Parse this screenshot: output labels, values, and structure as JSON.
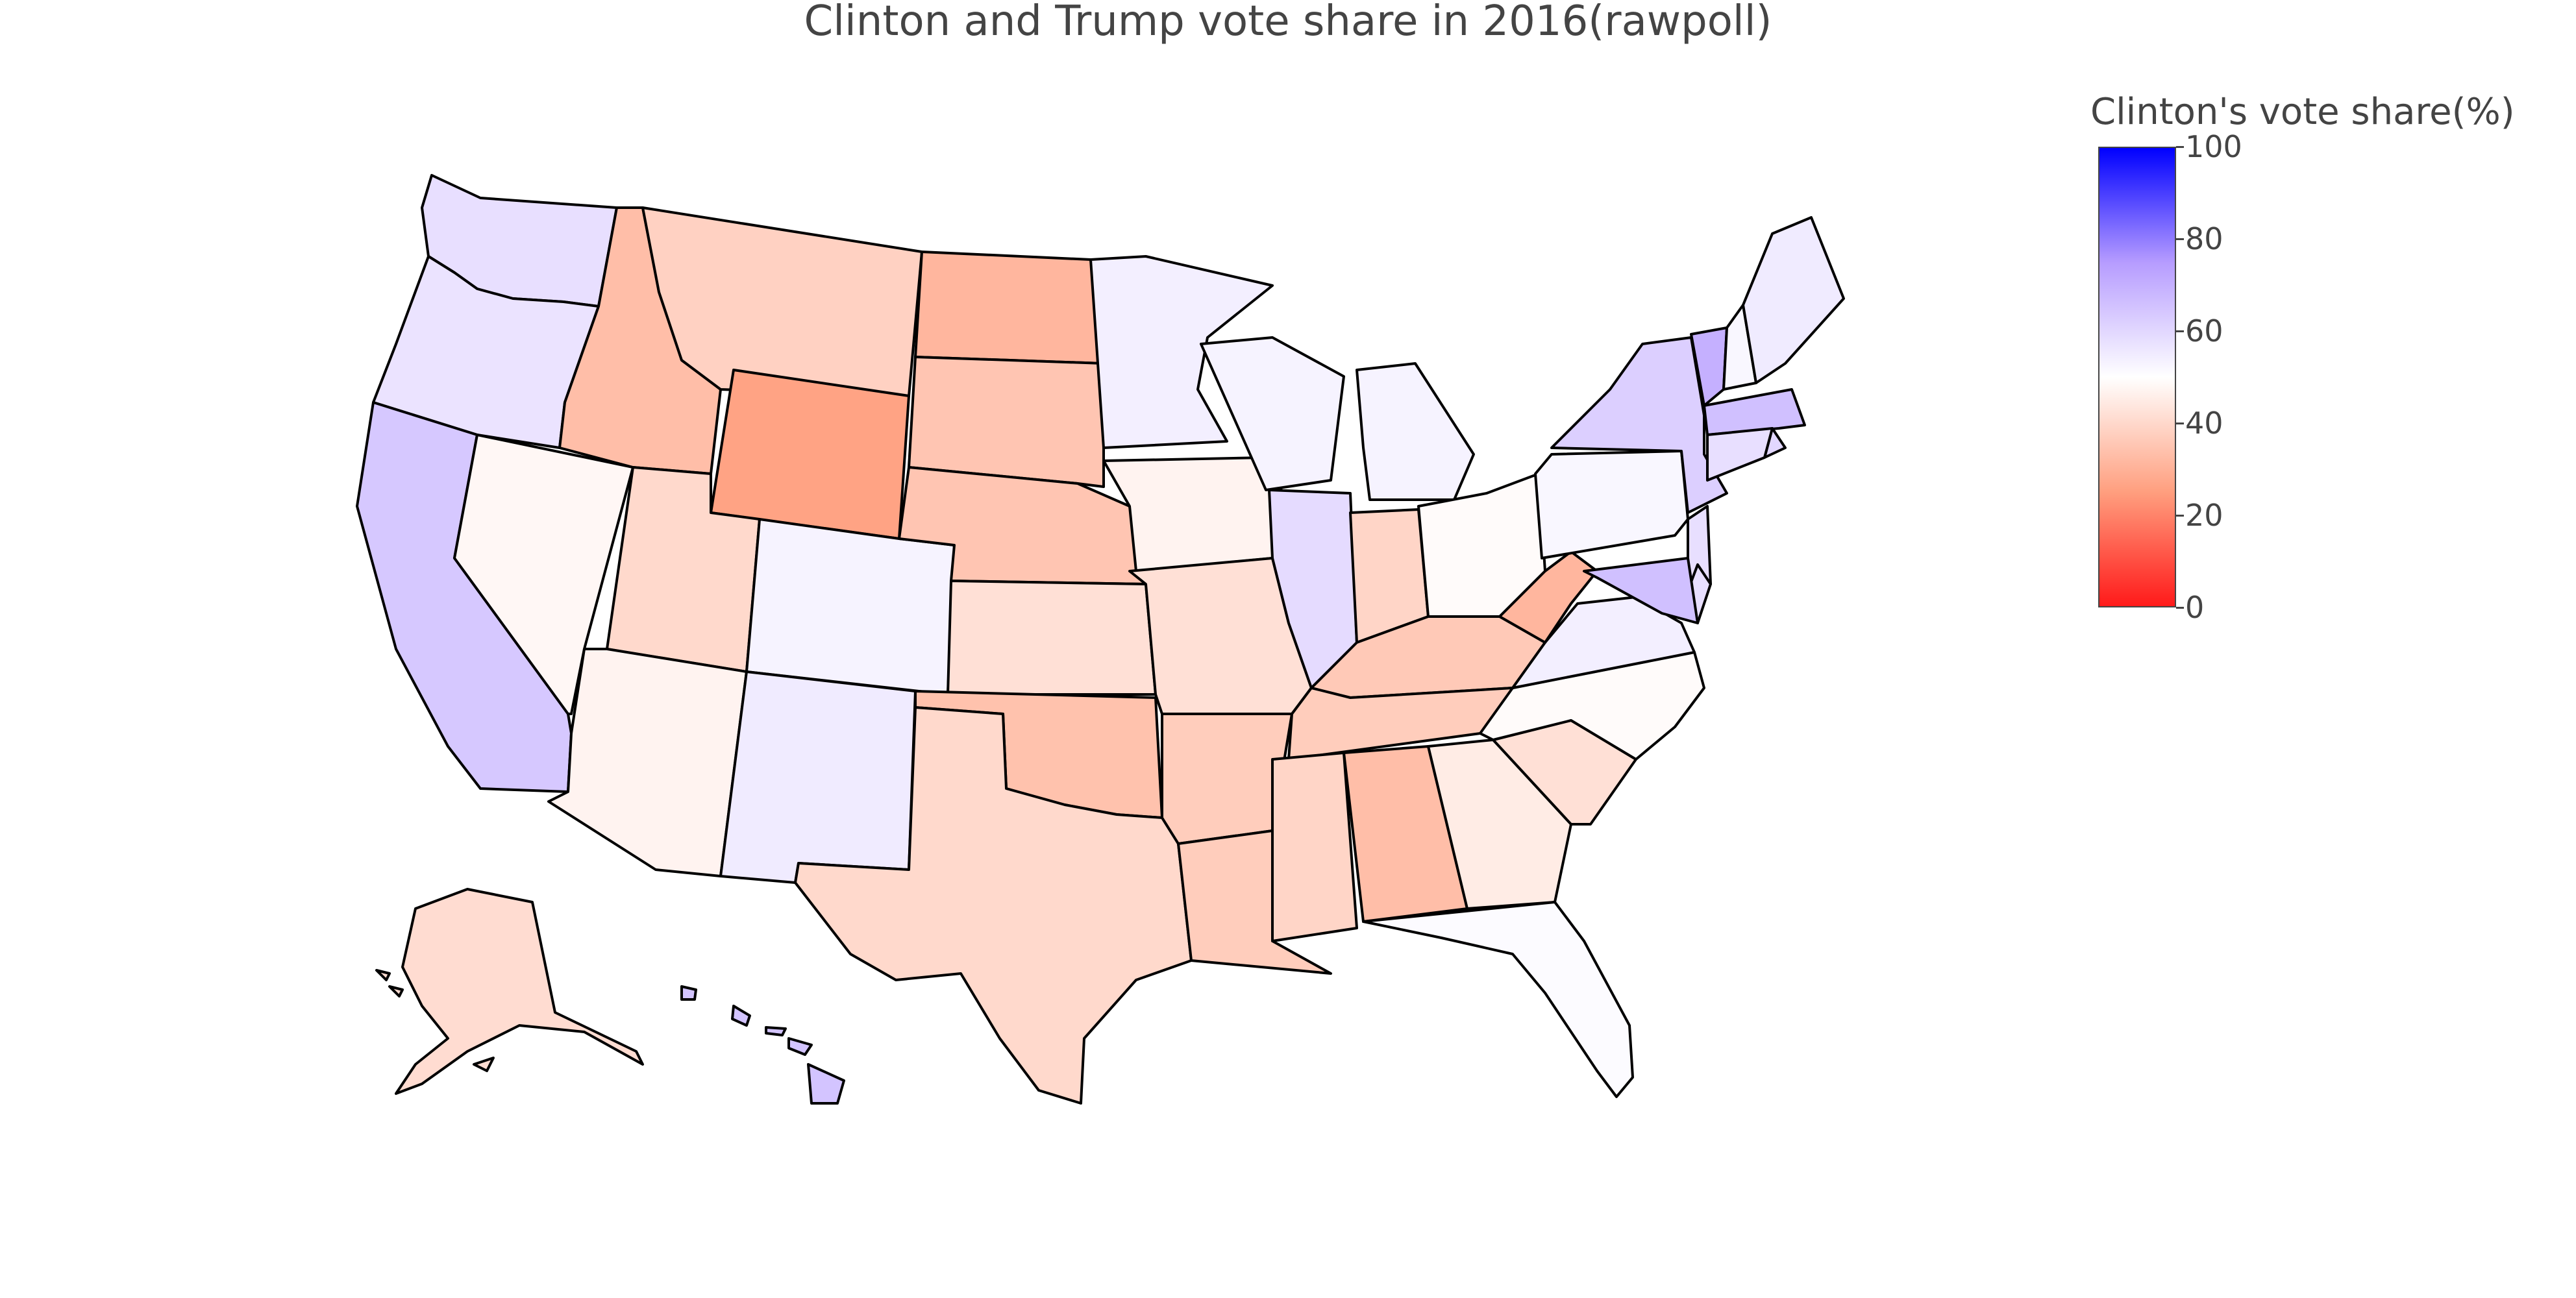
{
  "title": "Clinton and Trump vote share in 2016(rawpoll)",
  "colorbar": {
    "title": "Clinton's vote share(%)",
    "min": 0,
    "max": 100,
    "ticks": [
      "0",
      "20",
      "40",
      "60",
      "80",
      "100"
    ],
    "colors": [
      "#ff1a1a",
      "#ff9f7f",
      "#ffffff",
      "#b69cff",
      "#0000ff"
    ]
  },
  "chart_data": {
    "type": "choropleth",
    "locationmode": "USA-states",
    "z_label": "Clinton's vote share(%)",
    "zlim": [
      0,
      100
    ],
    "states": [
      {
        "code": "WA",
        "value": 58
      },
      {
        "code": "OR",
        "value": 57
      },
      {
        "code": "CA",
        "value": 64
      },
      {
        "code": "NV",
        "value": 48
      },
      {
        "code": "ID",
        "value": 33
      },
      {
        "code": "MT",
        "value": 38
      },
      {
        "code": "WY",
        "value": 26
      },
      {
        "code": "UT",
        "value": 40
      },
      {
        "code": "AZ",
        "value": 47
      },
      {
        "code": "CO",
        "value": 53
      },
      {
        "code": "NM",
        "value": 55
      },
      {
        "code": "ND",
        "value": 31
      },
      {
        "code": "SD",
        "value": 35
      },
      {
        "code": "NE",
        "value": 35
      },
      {
        "code": "KS",
        "value": 42
      },
      {
        "code": "OK",
        "value": 34
      },
      {
        "code": "TX",
        "value": 40
      },
      {
        "code": "MN",
        "value": 54
      },
      {
        "code": "IA",
        "value": 47
      },
      {
        "code": "MO",
        "value": 42
      },
      {
        "code": "AR",
        "value": 37
      },
      {
        "code": "LA",
        "value": 37
      },
      {
        "code": "WI",
        "value": 53
      },
      {
        "code": "IL",
        "value": 59
      },
      {
        "code": "MI",
        "value": 53
      },
      {
        "code": "IN",
        "value": 39
      },
      {
        "code": "OH",
        "value": 49
      },
      {
        "code": "KY",
        "value": 36
      },
      {
        "code": "TN",
        "value": 37
      },
      {
        "code": "MS",
        "value": 39
      },
      {
        "code": "AL",
        "value": 33
      },
      {
        "code": "GA",
        "value": 45
      },
      {
        "code": "FL",
        "value": 51
      },
      {
        "code": "SC",
        "value": 42
      },
      {
        "code": "NC",
        "value": 49
      },
      {
        "code": "VA",
        "value": 54
      },
      {
        "code": "WV",
        "value": 31
      },
      {
        "code": "PA",
        "value": 52
      },
      {
        "code": "NY",
        "value": 62
      },
      {
        "code": "VT",
        "value": 70
      },
      {
        "code": "NH",
        "value": 52
      },
      {
        "code": "ME",
        "value": 55
      },
      {
        "code": "MA",
        "value": 66
      },
      {
        "code": "RI",
        "value": 60
      },
      {
        "code": "CT",
        "value": 58
      },
      {
        "code": "NJ",
        "value": 58
      },
      {
        "code": "DE",
        "value": 58
      },
      {
        "code": "MD",
        "value": 66
      },
      {
        "code": "AK",
        "value": 41
      },
      {
        "code": "HI",
        "value": 65
      }
    ]
  }
}
